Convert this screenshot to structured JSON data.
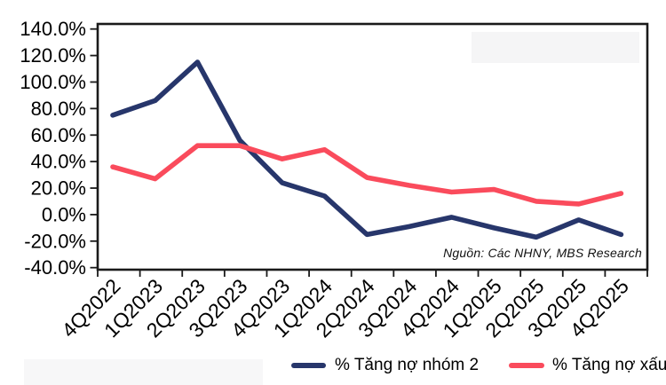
{
  "chart_data": {
    "type": "line",
    "title": "",
    "xlabel": "",
    "ylabel": "",
    "unit": "%",
    "categories": [
      "4Q2022",
      "1Q2023",
      "2Q2023",
      "3Q2023",
      "4Q2023",
      "1Q2024",
      "2Q2024",
      "3Q2024",
      "4Q2024",
      "1Q2025",
      "2Q2025",
      "3Q2025",
      "4Q2025"
    ],
    "series": [
      {
        "name": "% Tăng nợ nhóm 2",
        "color": "#27366B",
        "values": [
          75,
          86,
          115,
          56,
          24,
          14,
          -15,
          -9,
          -2,
          -10,
          -17,
          -4,
          -15
        ]
      },
      {
        "name": "% Tăng nợ xấu",
        "color": "#FA4B5C",
        "values": [
          36,
          27,
          52,
          52,
          42,
          49,
          28,
          22,
          17,
          19,
          10,
          8,
          16
        ]
      }
    ],
    "ylim": [
      -40,
      140
    ],
    "ytick_step": 20,
    "ytick_labels": [
      "140.0%",
      "120.0%",
      "100.0%",
      "80.0%",
      "60.0%",
      "40.0%",
      "20.0%",
      "0.0%",
      "-20.0%",
      "-40.0%"
    ],
    "grid": false,
    "legend_position": "bottom",
    "source_note": "Nguồn: Các NHNY, MBS Research",
    "colors": {
      "axis": "#1a1a1a",
      "text": "#000000"
    }
  }
}
